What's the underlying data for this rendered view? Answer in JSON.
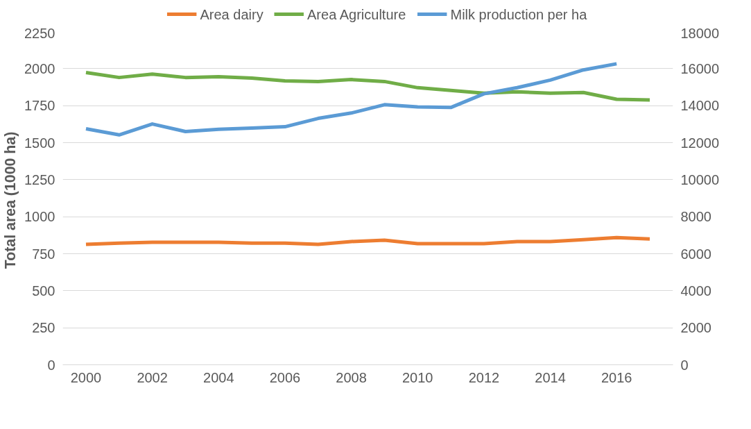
{
  "chart_data": {
    "type": "line",
    "ylabel": "Total area  (1000 ha)",
    "x": [
      2000,
      2001,
      2002,
      2003,
      2004,
      2005,
      2006,
      2007,
      2008,
      2009,
      2010,
      2011,
      2012,
      2013,
      2014,
      2015,
      2016,
      2017
    ],
    "series": [
      {
        "name": "Area dairy",
        "color": "#ed7d31",
        "values": [
          813,
          822,
          827,
          827,
          827,
          822,
          822,
          813,
          832,
          841,
          818,
          818,
          818,
          832,
          832,
          845,
          859,
          850
        ]
      },
      {
        "name": "Area Agriculture",
        "color": "#70ad47",
        "values": [
          1973,
          1940,
          1963,
          1940,
          1945,
          1936,
          1917,
          1913,
          1926,
          1913,
          1871,
          1853,
          1834,
          1843,
          1834,
          1839,
          1793,
          1788
        ]
      },
      {
        "name": "Milk production per ha",
        "color": "#5b9bd5",
        "axis": "y2",
        "values": [
          12750,
          12420,
          13010,
          12600,
          12720,
          12790,
          12860,
          13310,
          13600,
          14050,
          13930,
          13900,
          14640,
          14970,
          15380,
          15930,
          16260,
          null
        ]
      }
    ],
    "xlim": [
      1999.3,
      2017.7
    ],
    "xticks": [
      2000,
      2002,
      2004,
      2006,
      2008,
      2010,
      2012,
      2014,
      2016
    ],
    "ylim": [
      0,
      2250
    ],
    "yticks": [
      0,
      250,
      500,
      750,
      1000,
      1250,
      1500,
      1750,
      2000,
      2250
    ],
    "y2lim": [
      0,
      18000
    ],
    "y2ticks": [
      0,
      2000,
      4000,
      6000,
      8000,
      10000,
      12000,
      14000,
      16000,
      18000
    ],
    "grid": "y",
    "legend": "top",
    "line_style": "solid",
    "marker": "none"
  }
}
